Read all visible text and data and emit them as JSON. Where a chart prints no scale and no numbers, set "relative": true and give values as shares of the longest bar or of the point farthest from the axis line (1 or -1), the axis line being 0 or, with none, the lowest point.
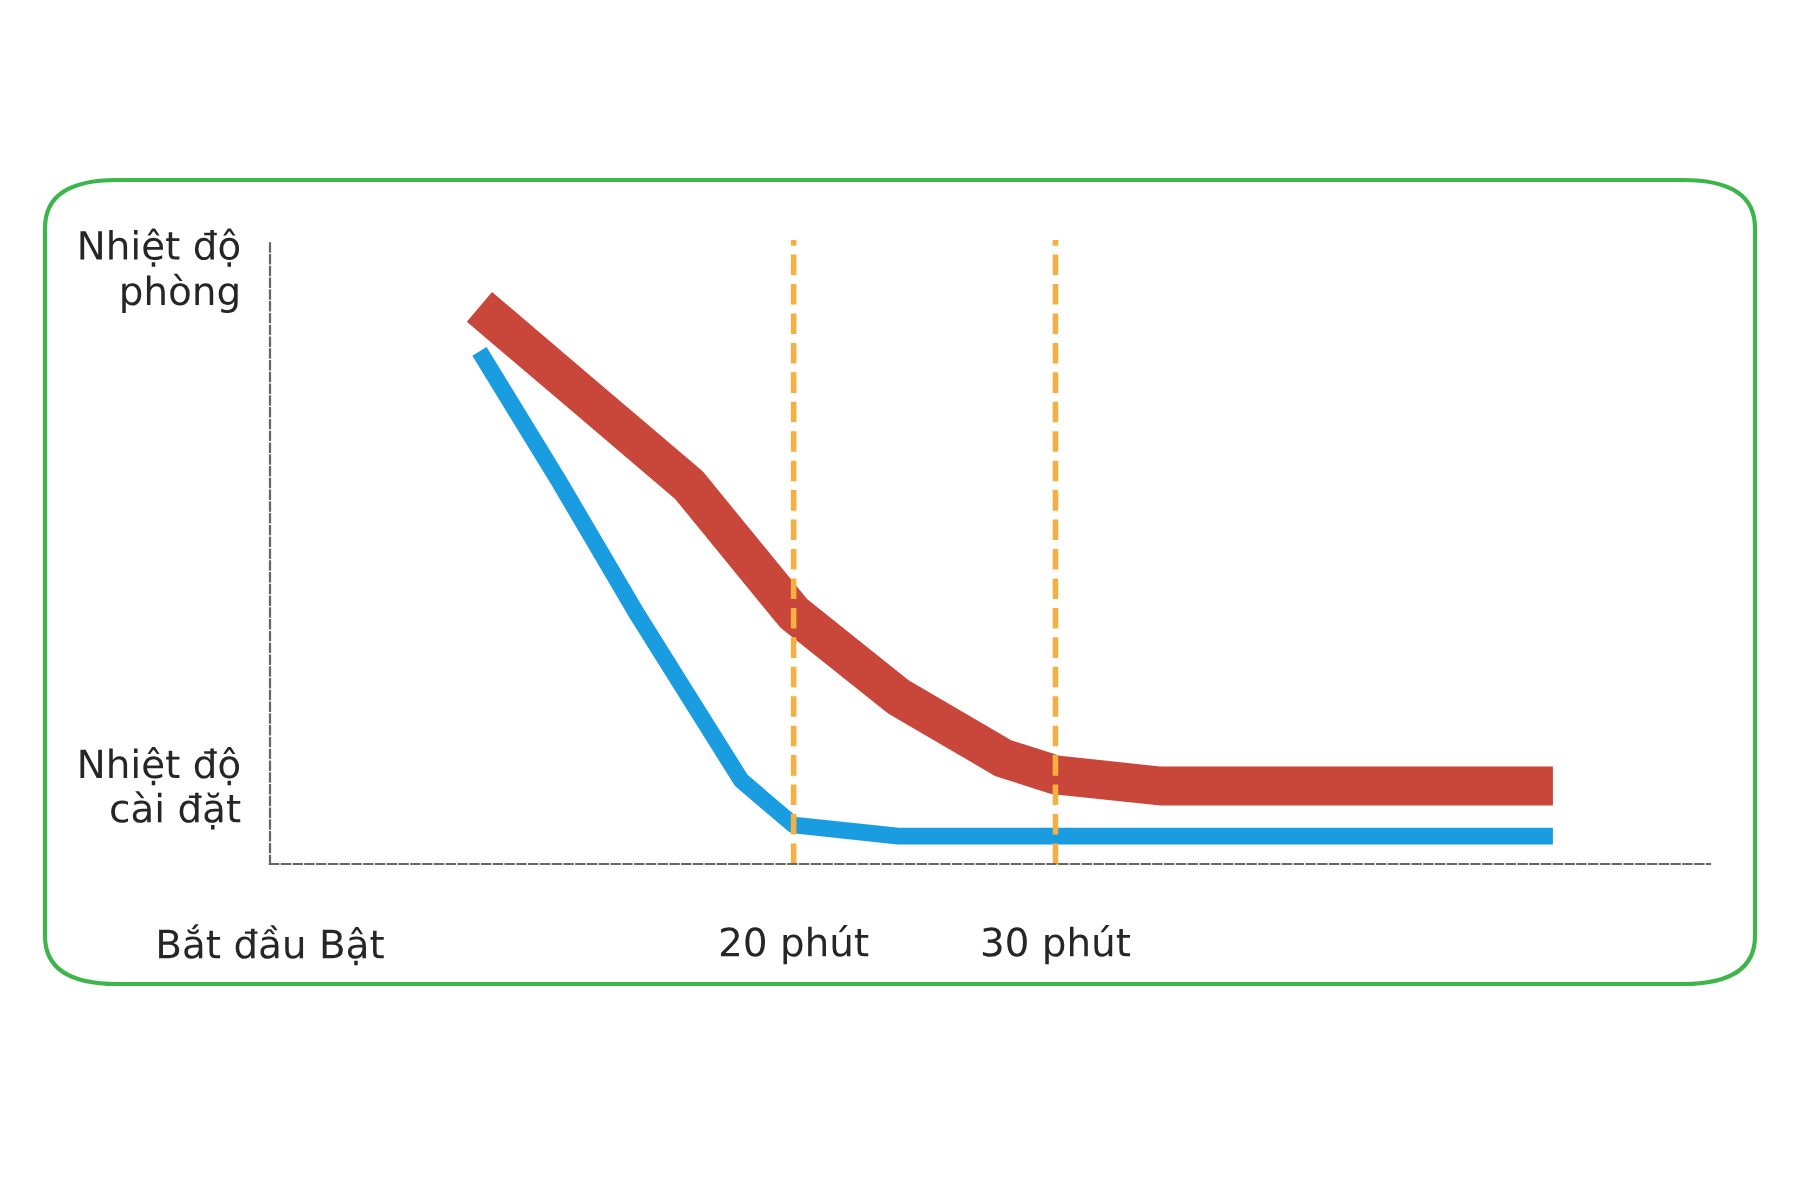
{
  "chart_data": {
    "type": "line",
    "relative": true,
    "series": [
      {
        "color": "#c8463a",
        "x": [
          8,
          12,
          16,
          20,
          24,
          28,
          30,
          34,
          40,
          49
        ],
        "values": [
          1.0,
          0.84,
          0.68,
          0.45,
          0.3,
          0.19,
          0.16,
          0.14,
          0.14,
          0.14
        ]
      },
      {
        "color": "#1a9de0",
        "x": [
          8,
          11,
          14,
          16,
          18,
          20,
          24,
          30,
          40,
          49
        ],
        "values": [
          0.92,
          0.69,
          0.45,
          0.3,
          0.15,
          0.07,
          0.05,
          0.05,
          0.05,
          0.05
        ]
      }
    ],
    "xlim": [
      0,
      55
    ],
    "xticks": [
      {
        "value": 0,
        "label": "Bắt đầu Bật"
      },
      {
        "value": 20,
        "label": "20 phút"
      },
      {
        "value": 30,
        "label": "30 phút"
      }
    ],
    "ref_lines": [
      {
        "axis": "x",
        "value": 20,
        "color": "#f5b041",
        "line_style": "dashed"
      },
      {
        "axis": "x",
        "value": 30,
        "color": "#f5b041",
        "line_style": "dashed"
      }
    ],
    "annotations": [
      "Nhiệt độ\nphòng",
      "Nhiệt độ\ncài đặt"
    ],
    "grid": false,
    "legend": false,
    "marker": "none",
    "line_style": "solid"
  }
}
